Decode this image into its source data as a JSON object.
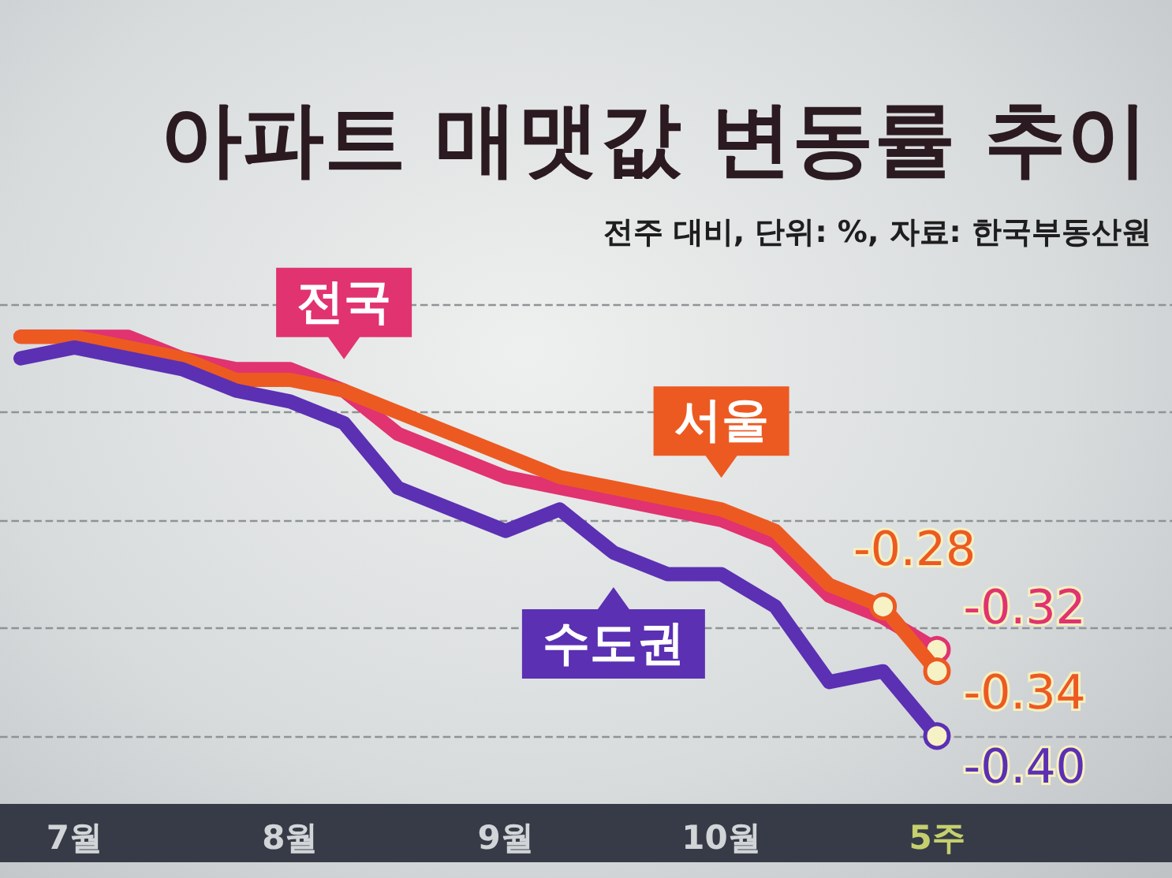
{
  "chart_data": {
    "type": "line",
    "title": "아파트 매맷값 변동률 추이",
    "subtitle": "전주 대비, 단위: %, 자료: 한국부동산원",
    "categories": [
      null,
      "7월",
      null,
      null,
      null,
      "8월",
      null,
      null,
      null,
      "9월",
      null,
      null,
      null,
      "10월",
      null,
      null,
      null,
      "5주"
    ],
    "series": [
      {
        "name": "전국",
        "color": "#e0336f",
        "values": [
          -0.03,
          -0.03,
          -0.03,
          -0.05,
          -0.06,
          -0.06,
          -0.08,
          -0.12,
          -0.14,
          -0.16,
          -0.17,
          -0.18,
          -0.19,
          -0.2,
          -0.22,
          -0.27,
          -0.29,
          -0.32
        ],
        "value_labels": [
          null,
          null,
          null,
          null,
          null,
          null,
          null,
          null,
          null,
          null,
          null,
          null,
          null,
          null,
          null,
          null,
          null,
          "-0.32"
        ]
      },
      {
        "name": "서울",
        "color": "#ec5a22",
        "values": [
          -0.03,
          -0.03,
          -0.04,
          -0.05,
          -0.07,
          -0.07,
          -0.08,
          -0.1,
          -0.12,
          -0.14,
          -0.16,
          -0.17,
          -0.18,
          -0.19,
          -0.21,
          -0.26,
          -0.28,
          -0.34
        ],
        "value_labels": [
          null,
          null,
          null,
          null,
          null,
          null,
          null,
          null,
          null,
          null,
          null,
          null,
          null,
          null,
          null,
          null,
          "-0.28",
          "-0.34"
        ]
      },
      {
        "name": "수도권",
        "color": "#5b30b3",
        "values": [
          -0.05,
          -0.04,
          -0.05,
          -0.06,
          -0.08,
          -0.09,
          -0.11,
          -0.17,
          -0.19,
          -0.21,
          -0.19,
          -0.23,
          -0.25,
          -0.25,
          -0.28,
          -0.35,
          -0.34,
          -0.4
        ],
        "value_labels": [
          null,
          null,
          null,
          null,
          null,
          null,
          null,
          null,
          null,
          null,
          null,
          null,
          null,
          null,
          null,
          null,
          null,
          "-0.40"
        ]
      }
    ],
    "yticks": [
      {
        "value": -0.4,
        "label": null
      },
      {
        "value": -0.3,
        "label": null
      },
      {
        "value": -0.2,
        "label": null
      },
      {
        "value": -0.1,
        "label": null
      },
      {
        "value": 0,
        "label": null
      }
    ],
    "grid": "y",
    "tick_labels": "x",
    "line_style": "solid"
  }
}
